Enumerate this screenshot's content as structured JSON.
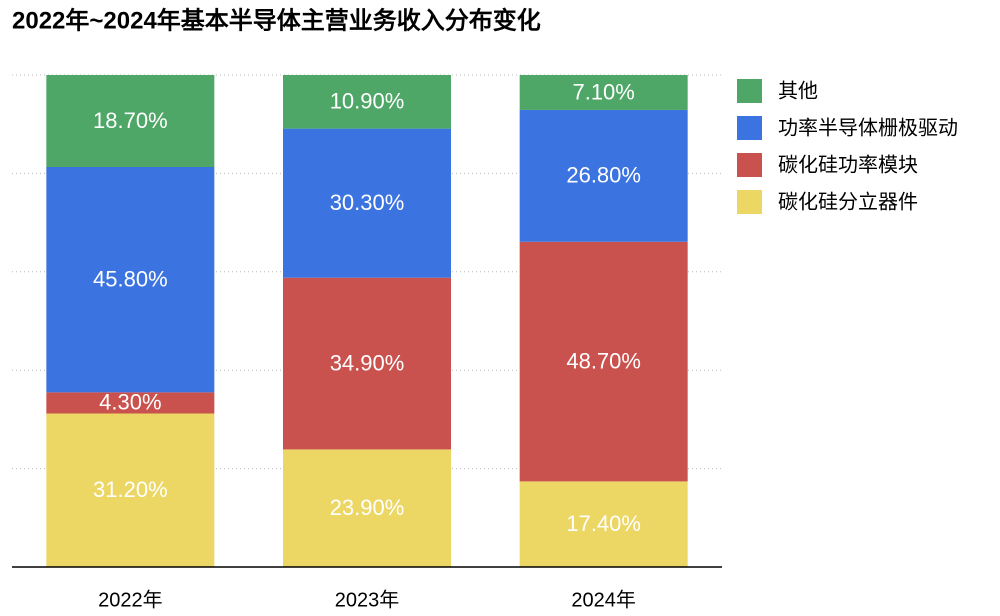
{
  "chart_data": {
    "type": "stacked_bar",
    "title": "2022年~2024年基本半导体主营业务收入分布变化",
    "categories": [
      "2022年",
      "2023年",
      "2024年"
    ],
    "series": [
      {
        "name": "碳化硅分立器件",
        "color": "#ecd664",
        "values": [
          31.2,
          23.9,
          17.4
        ],
        "value_labels": [
          "31.20%",
          "23.90%",
          "17.40%"
        ]
      },
      {
        "name": "碳化硅功率模块",
        "color": "#c9514e",
        "values": [
          4.3,
          34.9,
          48.7
        ],
        "value_labels": [
          "4.30%",
          "34.90%",
          "48.70%"
        ]
      },
      {
        "name": "功率半导体栅极驱动",
        "color": "#3b73e0",
        "values": [
          45.8,
          30.3,
          26.8
        ],
        "value_labels": [
          "45.80%",
          "30.30%",
          "26.80%"
        ]
      },
      {
        "name": "其他",
        "color": "#4ea667",
        "values": [
          18.7,
          10.9,
          7.1
        ],
        "value_labels": [
          "18.70%",
          "10.90%",
          "7.10%"
        ]
      }
    ],
    "ylim": [
      0,
      100
    ],
    "grid": true,
    "legend": "right"
  }
}
